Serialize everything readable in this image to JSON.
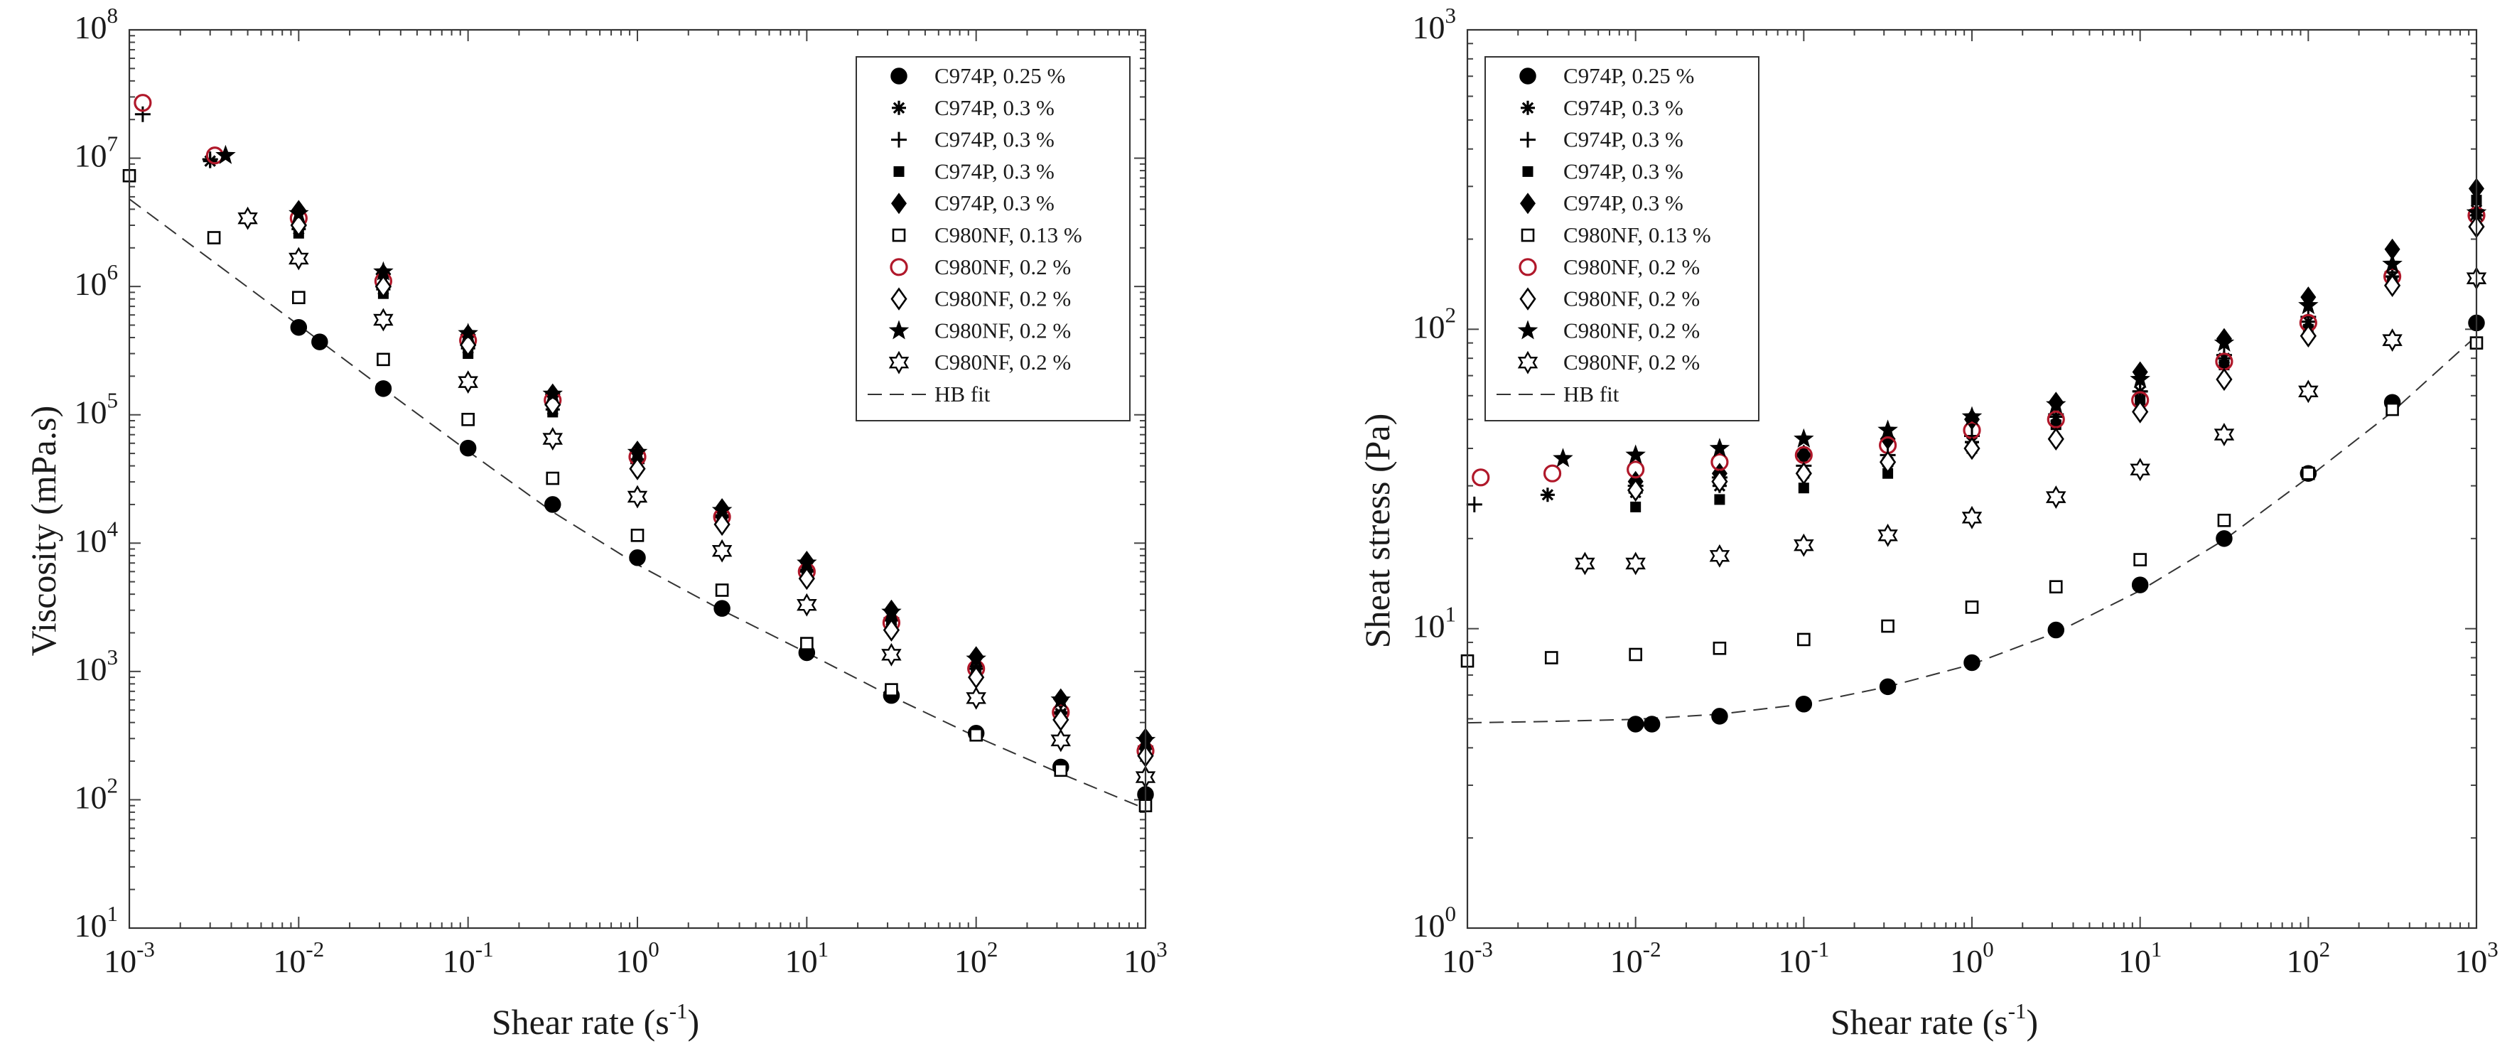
{
  "chart_data": [
    {
      "type": "scatter",
      "title": "",
      "xlabel": "Shear rate (s-1)",
      "xlabel_text": "Shear rate (s",
      "xlabel_sup": "-1",
      "xlabel_close": ")",
      "ylabel": "Viscosity (mPa.s)",
      "xscale": "log",
      "yscale": "log",
      "xlim": [
        0.001,
        1000
      ],
      "ylim": [
        10,
        100000000
      ],
      "xticks": [
        {
          "base": "10",
          "exp": "-3"
        },
        {
          "base": "10",
          "exp": "-2"
        },
        {
          "base": "10",
          "exp": "-1"
        },
        {
          "base": "10",
          "exp": "0"
        },
        {
          "base": "10",
          "exp": "1"
        },
        {
          "base": "10",
          "exp": "2"
        },
        {
          "base": "10",
          "exp": "3"
        }
      ],
      "yticks": [
        {
          "base": "10",
          "exp": "1"
        },
        {
          "base": "10",
          "exp": "2"
        },
        {
          "base": "10",
          "exp": "3"
        },
        {
          "base": "10",
          "exp": "4"
        },
        {
          "base": "10",
          "exp": "5"
        },
        {
          "base": "10",
          "exp": "6"
        },
        {
          "base": "10",
          "exp": "7"
        },
        {
          "base": "10",
          "exp": "8"
        }
      ],
      "legend_position": "top-right",
      "series": [
        {
          "name": "C974P, 0.25 %",
          "marker": "circle-filled",
          "color": "#000000",
          "x": [
            0.01,
            0.0133,
            0.0316,
            0.1,
            0.316,
            1,
            3.16,
            10,
            31.6,
            100,
            316,
            1000
          ],
          "y": [
            480000,
            370000,
            160000,
            55000,
            20000,
            7700,
            3100,
            1400,
            650,
            330,
            180,
            110
          ]
        },
        {
          "name": "C974P, 0.3 %",
          "marker": "asterisk",
          "color": "#000000",
          "x": [
            0.003,
            0.01,
            0.0316,
            0.1,
            0.316,
            1,
            3.16,
            10,
            31.6,
            100,
            316,
            1000
          ],
          "y": [
            9500000,
            2800000,
            950000,
            330000,
            110000,
            42000,
            16000,
            6000,
            2500,
            1050,
            470,
            250
          ]
        },
        {
          "name": "C974P, 0.3 %",
          "marker": "plus",
          "color": "#000000",
          "x": [
            0.0012,
            0.003,
            0.01,
            0.0316,
            0.1,
            0.316,
            1,
            3.16,
            10,
            31.6,
            100,
            316,
            1000
          ],
          "y": [
            22000000,
            9800000,
            3000000,
            1000000,
            350000,
            120000,
            45000,
            16500,
            6200,
            2600,
            1100,
            480,
            260
          ]
        },
        {
          "name": "C974P, 0.3 %",
          "marker": "square-filled",
          "color": "#000000",
          "x": [
            0.01,
            0.0316,
            0.1,
            0.316,
            1,
            3.16,
            10,
            31.6,
            100,
            316,
            1000
          ],
          "y": [
            2600000,
            880000,
            300000,
            105000,
            40000,
            15000,
            5800,
            2400,
            1000,
            460,
            240
          ]
        },
        {
          "name": "C974P, 0.3 %",
          "marker": "diamond-filled",
          "color": "#000000",
          "x": [
            0.01,
            0.0316,
            0.1,
            0.316,
            1,
            3.16,
            10,
            31.6,
            100,
            316,
            1000
          ],
          "y": [
            3900000,
            1250000,
            420000,
            145000,
            52000,
            18500,
            7200,
            3000,
            1300,
            610,
            300
          ]
        },
        {
          "name": "C980NF, 0.13 %",
          "marker": "square-open",
          "color": "#000000",
          "x": [
            0.001,
            0.00316,
            0.01,
            0.0316,
            0.1,
            0.316,
            1,
            3.16,
            10,
            31.6,
            100,
            316,
            1000
          ],
          "y": [
            7300000,
            2400000,
            820000,
            270000,
            92000,
            32000,
            11500,
            4300,
            1650,
            720,
            320,
            170,
            90
          ]
        },
        {
          "name": "C980NF, 0.2 %",
          "marker": "circle-open",
          "color": "#b0182a",
          "x": [
            0.0012,
            0.0032,
            0.01,
            0.0316,
            0.1,
            0.316,
            1,
            3.16,
            10,
            31.6,
            100,
            316,
            1000
          ],
          "y": [
            27000000,
            10500000,
            3400000,
            1100000,
            380000,
            130000,
            47000,
            16000,
            6000,
            2400,
            1050,
            480,
            240
          ]
        },
        {
          "name": "C980NF, 0.2 %",
          "marker": "diamond-open",
          "color": "#000000",
          "x": [
            0.01,
            0.0316,
            0.1,
            0.316,
            1,
            3.16,
            10,
            31.6,
            100,
            316,
            1000
          ],
          "y": [
            3000000,
            1000000,
            350000,
            120000,
            38000,
            14000,
            5300,
            2100,
            900,
            420,
            220
          ]
        },
        {
          "name": "C980NF, 0.2 %",
          "marker": "star-filled",
          "color": "#000000",
          "x": [
            0.0037,
            0.01,
            0.0316,
            0.1,
            0.316,
            1,
            3.16,
            10,
            31.6,
            100,
            316,
            1000
          ],
          "y": [
            10500000,
            3700000,
            1300000,
            430000,
            145000,
            51000,
            18000,
            7000,
            2900,
            1250,
            600,
            290
          ]
        },
        {
          "name": "C980NF, 0.2 %",
          "marker": "hexagram-open",
          "color": "#000000",
          "x": [
            0.005,
            0.01,
            0.0316,
            0.1,
            0.316,
            1,
            3.16,
            10,
            31.6,
            100,
            316,
            1000
          ],
          "y": [
            3400000,
            1650000,
            550000,
            180000,
            65000,
            23000,
            8700,
            3300,
            1350,
            620,
            290,
            150
          ]
        }
      ],
      "fit": {
        "name": "HB fit",
        "style": "dashed",
        "x": [
          0.001,
          0.00316,
          0.01,
          0.0316,
          0.1,
          0.316,
          1,
          3.16,
          10,
          31.6,
          100,
          316,
          1000
        ],
        "y": [
          4800000,
          1550000,
          500000,
          160000,
          52000,
          17500,
          6800,
          3000,
          1400,
          640,
          310,
          160,
          85
        ]
      }
    },
    {
      "type": "scatter",
      "title": "",
      "xlabel": "Shear rate (s-1)",
      "xlabel_text": "Shear rate (s",
      "xlabel_sup": "-1",
      "xlabel_close": ")",
      "ylabel": "Sheat stress (Pa)",
      "xscale": "log",
      "yscale": "log",
      "xlim": [
        0.001,
        1000
      ],
      "ylim": [
        1,
        1000
      ],
      "xticks": [
        {
          "base": "10",
          "exp": "-3"
        },
        {
          "base": "10",
          "exp": "-2"
        },
        {
          "base": "10",
          "exp": "-1"
        },
        {
          "base": "10",
          "exp": "0"
        },
        {
          "base": "10",
          "exp": "1"
        },
        {
          "base": "10",
          "exp": "2"
        },
        {
          "base": "10",
          "exp": "3"
        }
      ],
      "yticks": [
        {
          "base": "10",
          "exp": "0"
        },
        {
          "base": "10",
          "exp": "1"
        },
        {
          "base": "10",
          "exp": "2"
        },
        {
          "base": "10",
          "exp": "3"
        }
      ],
      "legend_position": "top-left",
      "series": [
        {
          "name": "C974P, 0.25 %",
          "marker": "circle-filled",
          "color": "#000000",
          "x": [
            0.01,
            0.0125,
            0.0316,
            0.1,
            0.316,
            1,
            3.16,
            10,
            31.6,
            100,
            316,
            1000
          ],
          "y": [
            4.8,
            4.8,
            5.1,
            5.6,
            6.4,
            7.7,
            9.9,
            14,
            20,
            33,
            57,
            105
          ]
        },
        {
          "name": "C974P, 0.3 %",
          "marker": "asterisk",
          "color": "#000000",
          "x": [
            0.003,
            0.01,
            0.0316,
            0.1,
            0.316,
            1,
            3.16,
            10,
            31.6,
            100,
            316,
            1000
          ],
          "y": [
            28,
            28.5,
            30,
            33,
            36,
            42,
            51,
            62,
            80,
            106,
            150,
            250
          ]
        },
        {
          "name": "C974P, 0.3 %",
          "marker": "plus",
          "color": "#000000",
          "x": [
            0.0011,
            0.01,
            0.0316,
            0.1,
            0.316,
            1,
            3.16,
            10,
            31.6,
            100,
            316,
            1000
          ],
          "y": [
            26,
            30,
            32,
            35,
            38,
            44,
            52,
            62,
            82,
            110,
            155,
            240
          ]
        },
        {
          "name": "C974P, 0.3 %",
          "marker": "square-filled",
          "color": "#000000",
          "x": [
            0.01,
            0.0316,
            0.1,
            0.316,
            1,
            3.16,
            10,
            31.6,
            100,
            316,
            1000
          ],
          "y": [
            25.5,
            27,
            29.5,
            33,
            40,
            48,
            58,
            76,
            100,
            145,
            270
          ]
        },
        {
          "name": "C974P, 0.3 %",
          "marker": "diamond-filled",
          "color": "#000000",
          "x": [
            0.01,
            0.0316,
            0.1,
            0.316,
            1,
            3.16,
            10,
            31.6,
            100,
            316,
            1000
          ],
          "y": [
            31,
            33,
            38,
            43,
            50,
            57,
            72,
            93,
            128,
            185,
            295
          ]
        },
        {
          "name": "C980NF, 0.13 %",
          "marker": "square-open",
          "color": "#000000",
          "x": [
            0.001,
            0.00316,
            0.01,
            0.0316,
            0.1,
            0.316,
            1,
            3.16,
            10,
            31.6,
            100,
            316,
            1000
          ],
          "y": [
            7.8,
            8,
            8.2,
            8.6,
            9.2,
            10.2,
            11.8,
            13.8,
            17,
            23,
            33,
            54,
            90
          ]
        },
        {
          "name": "C980NF, 0.2 %",
          "marker": "circle-open",
          "color": "#b0182a",
          "x": [
            0.0012,
            0.0032,
            0.01,
            0.0316,
            0.1,
            0.316,
            1,
            3.16,
            10,
            31.6,
            100,
            316,
            1000
          ],
          "y": [
            32,
            33,
            34,
            36,
            38,
            41,
            46,
            50,
            58,
            78,
            105,
            150,
            240
          ]
        },
        {
          "name": "C980NF, 0.2 %",
          "marker": "diamond-open",
          "color": "#000000",
          "x": [
            0.01,
            0.0316,
            0.1,
            0.316,
            1,
            3.16,
            10,
            31.6,
            100,
            316,
            1000
          ],
          "y": [
            29,
            31,
            33,
            36,
            40,
            43,
            53,
            68,
            95,
            140,
            220
          ]
        },
        {
          "name": "C980NF, 0.2 %",
          "marker": "star-filled",
          "color": "#000000",
          "x": [
            0.0037,
            0.01,
            0.0316,
            0.1,
            0.316,
            1,
            3.16,
            10,
            31.6,
            100,
            316,
            1000
          ],
          "y": [
            37,
            38,
            40,
            43,
            46,
            51,
            56,
            68,
            90,
            120,
            165,
            245
          ]
        },
        {
          "name": "C980NF, 0.2 %",
          "marker": "hexagram-open",
          "color": "#000000",
          "x": [
            0.005,
            0.01,
            0.0316,
            0.1,
            0.316,
            1,
            3.16,
            10,
            31.6,
            100,
            316,
            1000
          ],
          "y": [
            16.5,
            16.5,
            17.5,
            19,
            20.5,
            23.5,
            27.5,
            34,
            44.5,
            62,
            92,
            148
          ]
        }
      ],
      "fit": {
        "name": "HB fit",
        "style": "dashed",
        "x": [
          0.001,
          0.00316,
          0.01,
          0.0316,
          0.1,
          0.316,
          1,
          3.16,
          10,
          31.6,
          100,
          316,
          1000
        ],
        "y": [
          4.85,
          4.9,
          4.98,
          5.18,
          5.6,
          6.4,
          7.6,
          9.7,
          13.4,
          19.8,
          32,
          53,
          95
        ]
      }
    }
  ]
}
